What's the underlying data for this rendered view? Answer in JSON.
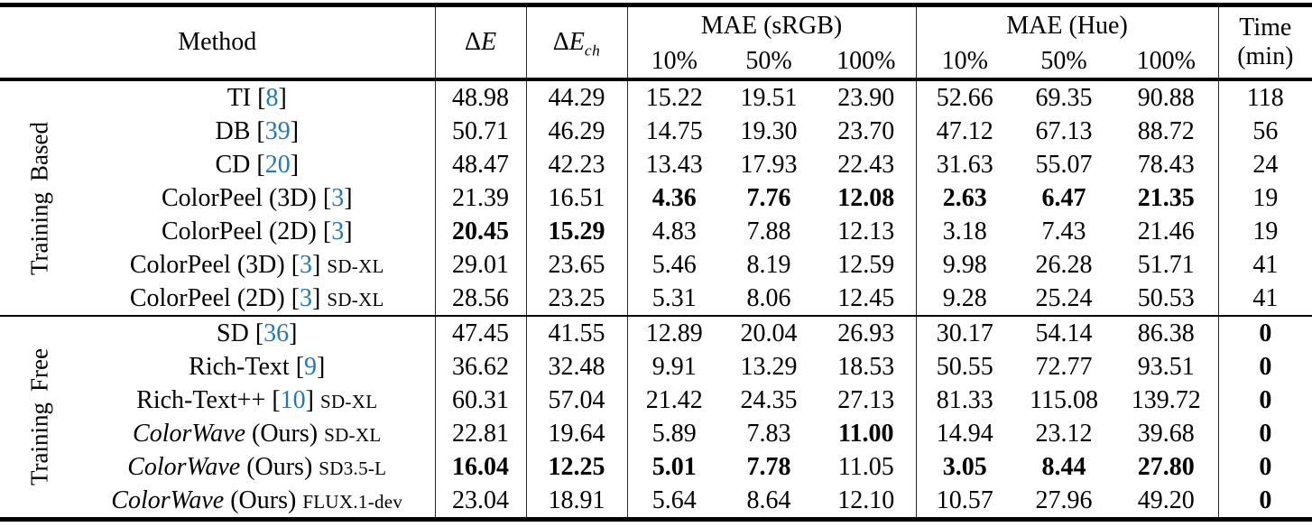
{
  "colors": {
    "cite": "#2479b5",
    "rule": "#000000"
  },
  "table": {
    "columns": {
      "method": "Method",
      "delta": "Δ",
      "e": "E",
      "ch_sub": "ch",
      "mae_srgb": "MAE (sRGB)",
      "mae_hue": "MAE (Hue)",
      "percents": [
        "10%",
        "50%",
        "100%"
      ],
      "time_line1": "Time",
      "time_line2": "(min)"
    },
    "value_column_names": [
      "delta-e-value",
      "delta-e-ch-value",
      "mae-srgb-10-value",
      "mae-srgb-50-value",
      "mae-srgb-100-value",
      "mae-hue-10-value",
      "mae-hue-50-value",
      "mae-hue-100-value",
      "time-value"
    ],
    "groups": [
      {
        "label_lines": [
          "Training",
          "Based"
        ],
        "rows": [
          {
            "name": "TI",
            "italic": false,
            "after": "",
            "cite": "8",
            "suffix": null,
            "values": [
              "48.98",
              "44.29",
              "15.22",
              "19.51",
              "23.90",
              "52.66",
              "69.35",
              "90.88",
              "118"
            ],
            "bold": [
              0,
              0,
              0,
              0,
              0,
              0,
              0,
              0,
              0
            ]
          },
          {
            "name": "DB",
            "italic": false,
            "after": "",
            "cite": "39",
            "suffix": null,
            "values": [
              "50.71",
              "46.29",
              "14.75",
              "19.30",
              "23.70",
              "47.12",
              "67.13",
              "88.72",
              "56"
            ],
            "bold": [
              0,
              0,
              0,
              0,
              0,
              0,
              0,
              0,
              0
            ]
          },
          {
            "name": "CD",
            "italic": false,
            "after": "",
            "cite": "20",
            "suffix": null,
            "values": [
              "48.47",
              "42.23",
              "13.43",
              "17.93",
              "22.43",
              "31.63",
              "55.07",
              "78.43",
              "24"
            ],
            "bold": [
              0,
              0,
              0,
              0,
              0,
              0,
              0,
              0,
              0
            ]
          },
          {
            "name": "ColorPeel (3D)",
            "italic": false,
            "after": "",
            "cite": "3",
            "suffix": null,
            "values": [
              "21.39",
              "16.51",
              "4.36",
              "7.76",
              "12.08",
              "2.63",
              "6.47",
              "21.35",
              "19"
            ],
            "bold": [
              0,
              0,
              1,
              1,
              1,
              1,
              1,
              1,
              0
            ]
          },
          {
            "name": "ColorPeel (2D)",
            "italic": false,
            "after": "",
            "cite": "3",
            "suffix": null,
            "values": [
              "20.45",
              "15.29",
              "4.83",
              "7.88",
              "12.13",
              "3.18",
              "7.43",
              "21.46",
              "19"
            ],
            "bold": [
              1,
              1,
              0,
              0,
              0,
              0,
              0,
              0,
              0
            ]
          },
          {
            "name": "ColorPeel (3D)",
            "italic": false,
            "after": "",
            "cite": "3",
            "suffix": "SD-XL",
            "values": [
              "29.01",
              "23.65",
              "5.46",
              "8.19",
              "12.59",
              "9.98",
              "26.28",
              "51.71",
              "41"
            ],
            "bold": [
              0,
              0,
              0,
              0,
              0,
              0,
              0,
              0,
              0
            ]
          },
          {
            "name": "ColorPeel (2D)",
            "italic": false,
            "after": "",
            "cite": "3",
            "suffix": "SD-XL",
            "values": [
              "28.56",
              "23.25",
              "5.31",
              "8.06",
              "12.45",
              "9.28",
              "25.24",
              "50.53",
              "41"
            ],
            "bold": [
              0,
              0,
              0,
              0,
              0,
              0,
              0,
              0,
              0
            ]
          }
        ]
      },
      {
        "label_lines": [
          "Training",
          "Free"
        ],
        "rows": [
          {
            "name": "SD",
            "italic": false,
            "after": "",
            "cite": "36",
            "suffix": null,
            "values": [
              "47.45",
              "41.55",
              "12.89",
              "20.04",
              "26.93",
              "30.17",
              "54.14",
              "86.38",
              "0"
            ],
            "bold": [
              0,
              0,
              0,
              0,
              0,
              0,
              0,
              0,
              1
            ]
          },
          {
            "name": "Rich-Text",
            "italic": false,
            "after": "",
            "cite": "9",
            "suffix": null,
            "values": [
              "36.62",
              "32.48",
              "9.91",
              "13.29",
              "18.53",
              "50.55",
              "72.77",
              "93.51",
              "0"
            ],
            "bold": [
              0,
              0,
              0,
              0,
              0,
              0,
              0,
              0,
              1
            ]
          },
          {
            "name": "Rich-Text++",
            "italic": false,
            "after": "",
            "cite": "10",
            "suffix": "SD-XL",
            "values": [
              "60.31",
              "57.04",
              "21.42",
              "24.35",
              "27.13",
              "81.33",
              "115.08",
              "139.72",
              "0"
            ],
            "bold": [
              0,
              0,
              0,
              0,
              0,
              0,
              0,
              0,
              1
            ]
          },
          {
            "name": "ColorWave",
            "italic": true,
            "after": " (Ours)",
            "cite": null,
            "suffix": "SD-XL",
            "values": [
              "22.81",
              "19.64",
              "5.89",
              "7.83",
              "11.00",
              "14.94",
              "23.12",
              "39.68",
              "0"
            ],
            "bold": [
              0,
              0,
              0,
              0,
              1,
              0,
              0,
              0,
              1
            ]
          },
          {
            "name": "ColorWave",
            "italic": true,
            "after": " (Ours)",
            "cite": null,
            "suffix": "SD3.5-L",
            "values": [
              "16.04",
              "12.25",
              "5.01",
              "7.78",
              "11.05",
              "3.05",
              "8.44",
              "27.80",
              "0"
            ],
            "bold": [
              1,
              1,
              1,
              1,
              0,
              1,
              1,
              1,
              1
            ]
          },
          {
            "name": "ColorWave",
            "italic": true,
            "after": " (Ours)",
            "cite": null,
            "suffix": "FLUX.1-dev",
            "values": [
              "23.04",
              "18.91",
              "5.64",
              "8.64",
              "12.10",
              "10.57",
              "27.96",
              "49.20",
              "0"
            ],
            "bold": [
              0,
              0,
              0,
              0,
              0,
              0,
              0,
              0,
              1
            ]
          }
        ]
      }
    ]
  }
}
